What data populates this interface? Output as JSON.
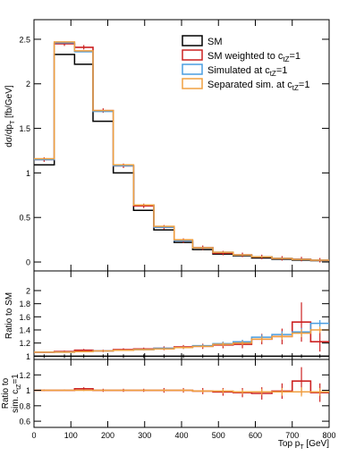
{
  "chart_data": {
    "type": "step-histogram",
    "x_bin_edges": [
      0,
      55,
      110,
      160,
      215,
      270,
      325,
      380,
      430,
      485,
      540,
      590,
      645,
      700,
      750,
      800
    ],
    "series": [
      {
        "name": "SM",
        "color": "#000000",
        "values": [
          1.09,
          2.33,
          2.22,
          1.58,
          1.0,
          0.58,
          0.36,
          0.22,
          0.14,
          0.09,
          0.07,
          0.045,
          0.032,
          0.022,
          0.015
        ],
        "ratio_sm": [
          1.0,
          1.0,
          1.0,
          1.0,
          1.0,
          1.0,
          1.0,
          1.0,
          1.0,
          1.0,
          1.0,
          1.0,
          1.0,
          1.0,
          1.0
        ],
        "ratio_sim": null
      },
      {
        "name_prefix": "SM weighted to c",
        "name_sub": "tZ",
        "name_suffix": "=1",
        "color": "#cc2222",
        "values": [
          1.15,
          2.45,
          2.41,
          1.7,
          1.08,
          0.63,
          0.39,
          0.24,
          0.16,
          0.1,
          0.08,
          0.057,
          0.041,
          0.033,
          0.02
        ],
        "ratio_sm": [
          1.06,
          1.07,
          1.09,
          1.08,
          1.1,
          1.11,
          1.12,
          1.14,
          1.15,
          1.17,
          1.18,
          1.26,
          1.3,
          1.52,
          1.22
        ],
        "ratio_sim": [
          1.0,
          1.0,
          1.02,
          1.0,
          1.0,
          1.0,
          1.0,
          1.0,
          0.99,
          0.98,
          0.97,
          0.96,
          0.99,
          1.12,
          0.97
        ],
        "err_sm": [
          0.01,
          0.015,
          0.02,
          0.02,
          0.02,
          0.02,
          0.03,
          0.03,
          0.04,
          0.05,
          0.06,
          0.08,
          0.12,
          0.3,
          0.15
        ],
        "err_sim": [
          0.01,
          0.01,
          0.02,
          0.02,
          0.02,
          0.02,
          0.03,
          0.03,
          0.04,
          0.05,
          0.06,
          0.08,
          0.1,
          0.18,
          0.12
        ]
      },
      {
        "name_prefix": "Simulated at c",
        "name_sub": "tZ",
        "name_suffix": "=1",
        "color": "#4a9de0",
        "values": [
          1.15,
          2.46,
          2.36,
          1.69,
          1.08,
          0.64,
          0.39,
          0.24,
          0.16,
          0.11,
          0.08,
          0.059,
          0.042,
          0.03,
          0.021
        ],
        "ratio_sm": [
          1.06,
          1.06,
          1.07,
          1.08,
          1.09,
          1.1,
          1.12,
          1.13,
          1.16,
          1.19,
          1.22,
          1.29,
          1.33,
          1.37,
          1.5
        ],
        "ratio_sim": null,
        "err_sm": [
          0.005,
          0.01,
          0.01,
          0.01,
          0.01,
          0.01,
          0.015,
          0.02,
          0.02,
          0.03,
          0.03,
          0.04,
          0.05,
          0.06,
          0.05
        ]
      },
      {
        "name_prefix": "Separated sim. at c",
        "name_sub": "tZ",
        "name_suffix": "=1",
        "color": "#f0a040",
        "values": [
          1.16,
          2.47,
          2.37,
          1.7,
          1.09,
          0.64,
          0.4,
          0.25,
          0.16,
          0.11,
          0.08,
          0.058,
          0.041,
          0.029,
          0.02
        ],
        "ratio_sm": [
          1.06,
          1.06,
          1.07,
          1.08,
          1.09,
          1.1,
          1.11,
          1.13,
          1.15,
          1.18,
          1.2,
          1.26,
          1.3,
          1.35,
          1.4
        ],
        "ratio_sim": [
          1.0,
          1.0,
          1.0,
          1.0,
          1.0,
          1.0,
          1.0,
          1.0,
          0.99,
          0.99,
          0.98,
          0.98,
          0.98,
          0.98,
          0.98
        ],
        "err_sm": [
          0.005,
          0.01,
          0.01,
          0.01,
          0.01,
          0.01,
          0.015,
          0.02,
          0.02,
          0.03,
          0.03,
          0.04,
          0.05,
          0.06,
          0.05
        ],
        "err_sim": [
          0.005,
          0.01,
          0.01,
          0.01,
          0.01,
          0.01,
          0.015,
          0.02,
          0.02,
          0.03,
          0.03,
          0.04,
          0.05,
          0.06,
          0.05
        ]
      }
    ],
    "main_panel": {
      "ylabel_main": "dσ/dp",
      "ylabel_sub": "T",
      "ylabel_unit": " [fb/GeV]",
      "ylim": [
        -0.1,
        2.72
      ],
      "yticks": [
        0,
        0.5,
        1,
        1.5,
        2,
        2.5
      ],
      "ytick_labels": [
        "0",
        "0.5",
        "1",
        "1.5",
        "2",
        "2.5"
      ]
    },
    "ratio_sm_panel": {
      "ylabel": "Ratio to SM",
      "ylim": [
        0.95,
        2.3
      ],
      "yticks": [
        1,
        1.2,
        1.4,
        1.6,
        1.8,
        2
      ],
      "ytick_labels": [
        "1",
        "1.2",
        "1.4",
        "1.6",
        "1.8",
        "2"
      ]
    },
    "ratio_sim_panel": {
      "ylabel_line1": "Ratio to",
      "ylabel_line2_prefix": "sim. c",
      "ylabel_line2_sub": "tZ",
      "ylabel_line2_suffix": "=1",
      "ylim": [
        0.52,
        1.4
      ],
      "yticks": [
        0.6,
        0.8,
        1,
        1.2
      ],
      "ytick_labels": [
        "0.6",
        "0.8",
        "1",
        "1.2"
      ]
    },
    "xaxis": {
      "label_prefix": "Top p",
      "label_sub": "T",
      "label_suffix": " [GeV]",
      "xlim": [
        0,
        800
      ],
      "xticks": [
        0,
        100,
        200,
        300,
        400,
        500,
        600,
        700,
        800
      ],
      "xtick_labels": [
        "0",
        "100",
        "200",
        "300",
        "400",
        "500",
        "600",
        "700",
        "800"
      ]
    },
    "legend_placement": "top-right",
    "grid": false
  }
}
